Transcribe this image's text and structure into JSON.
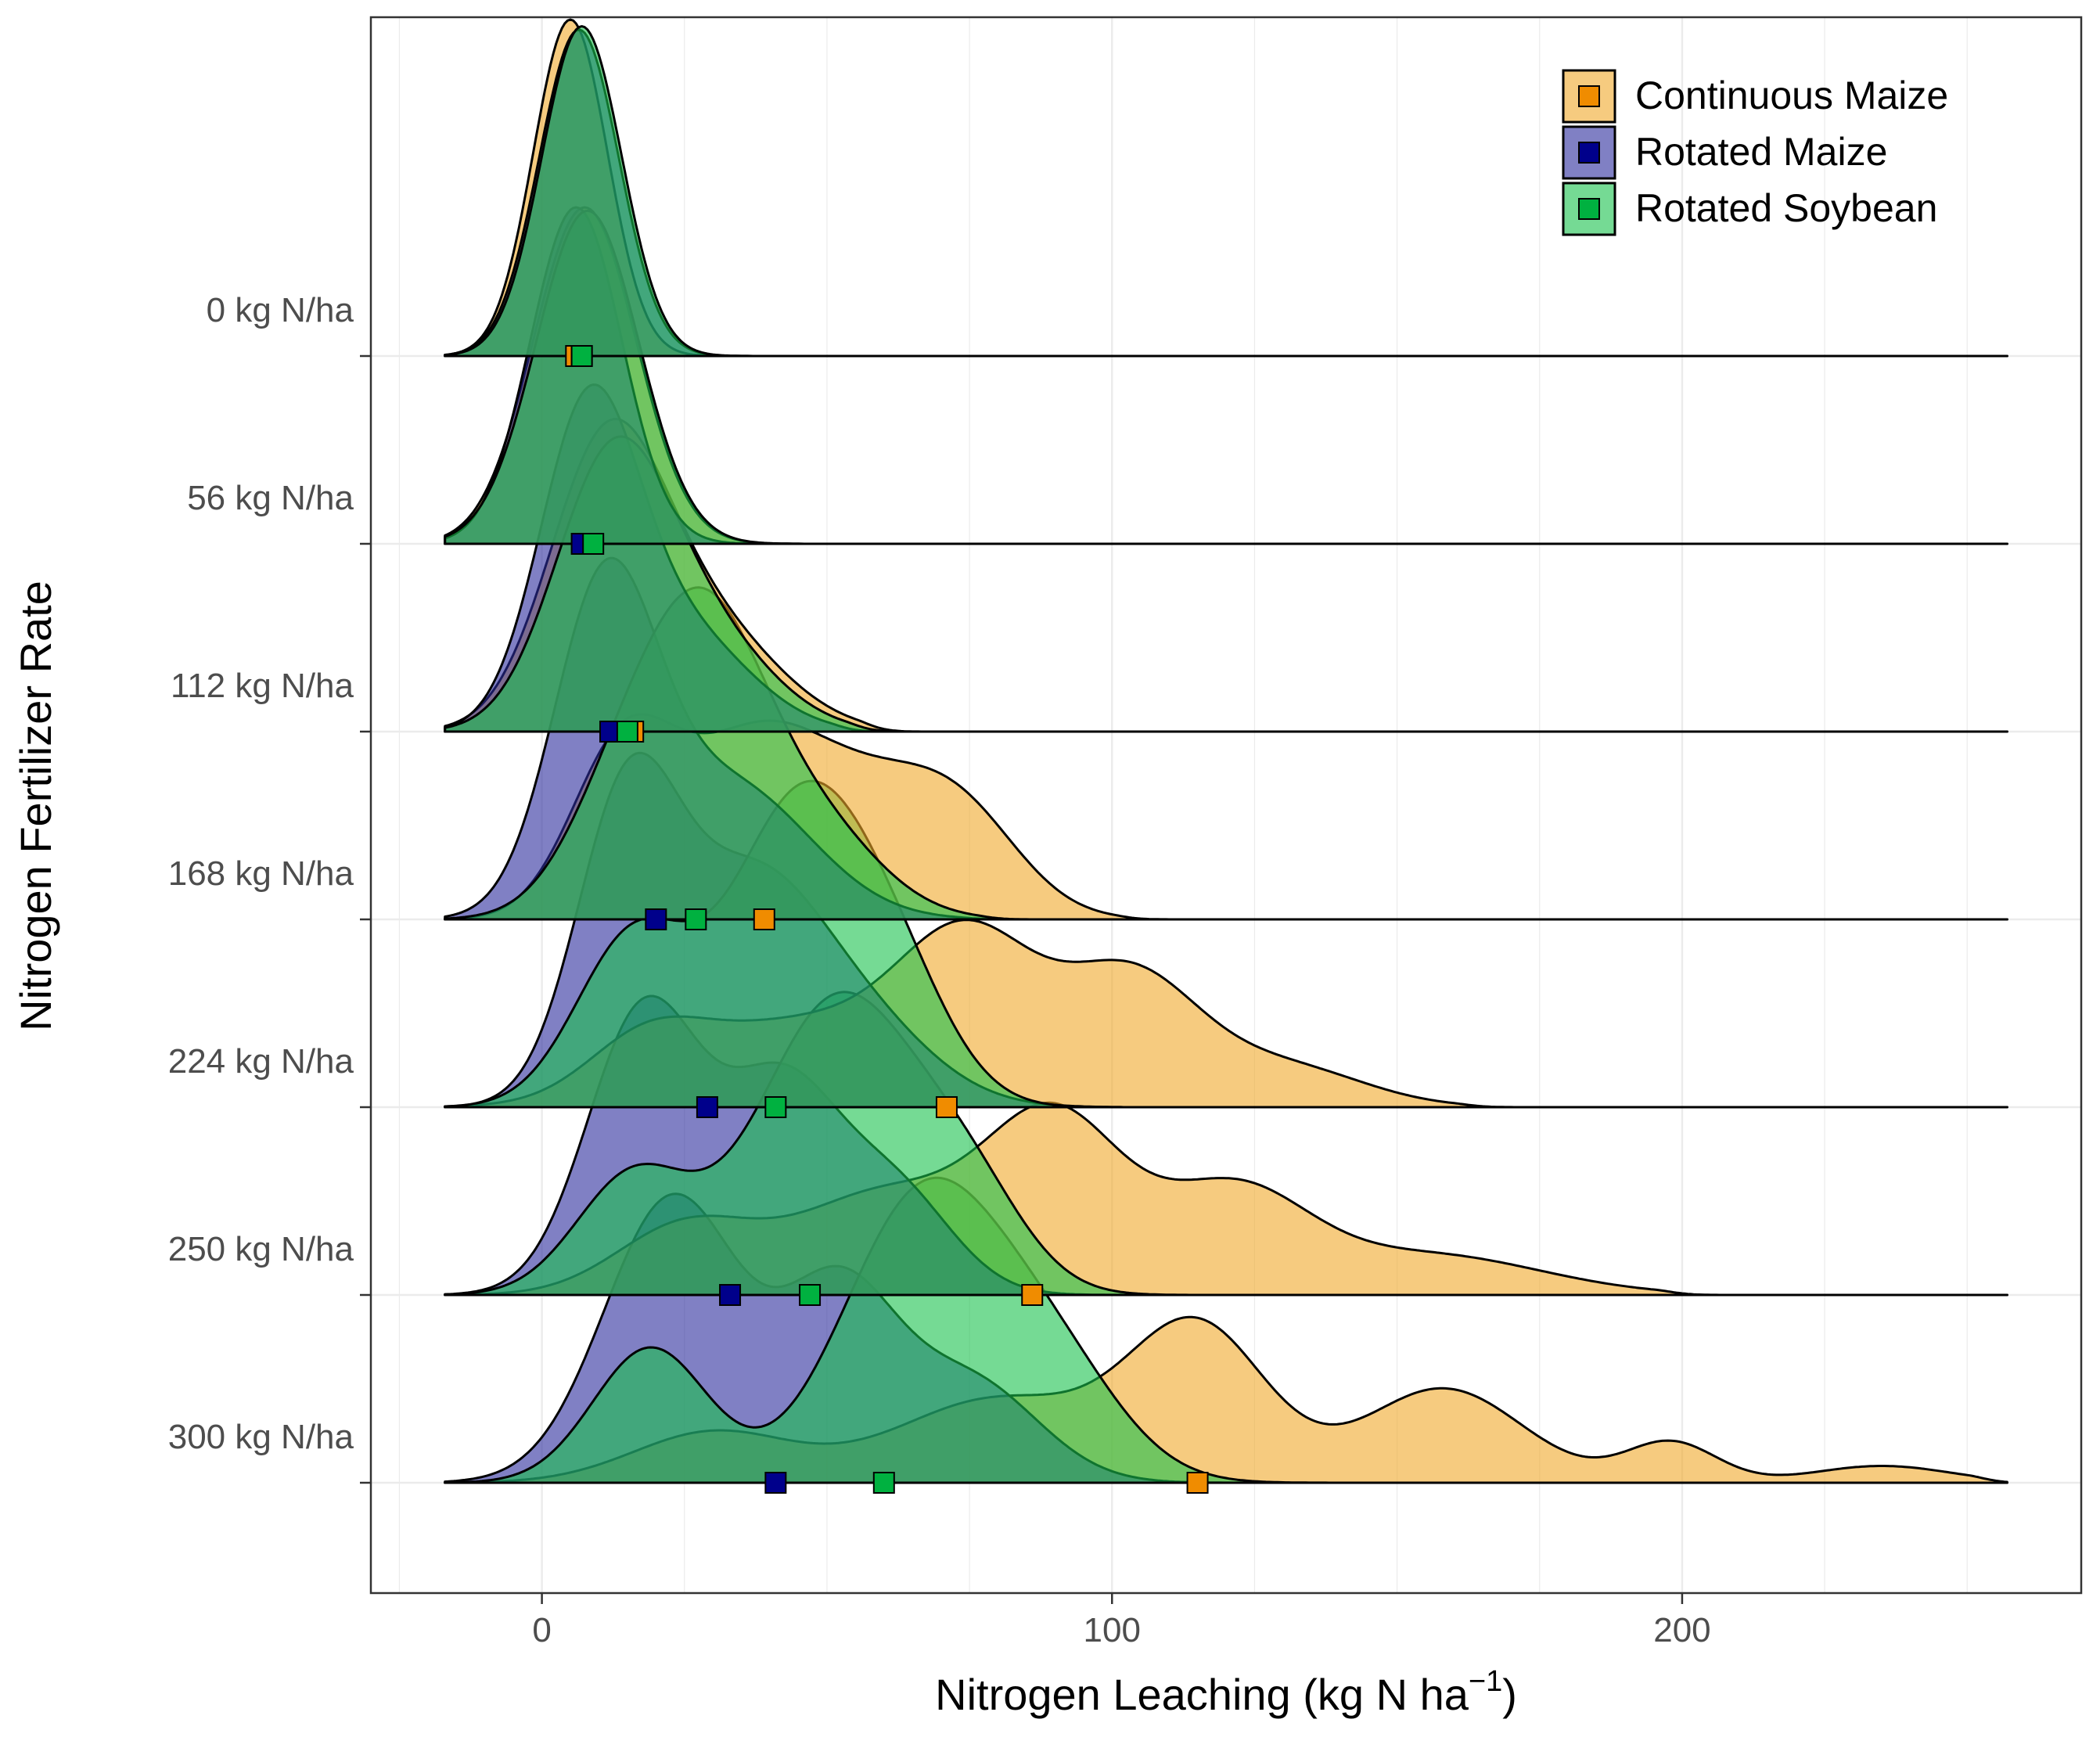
{
  "chart_data": {
    "type": "ridgeline",
    "title": "",
    "xlabel": "Nitrogen Leaching (kg N ha",
    "xlabel_superscript": "−1",
    "xlabel_suffix": ")",
    "ylabel": "Nitrogen Fertilizer Rate",
    "xlim": [
      -30,
      270
    ],
    "x_ticks": [
      0,
      100,
      200
    ],
    "x_tick_labels": [
      "0",
      "100",
      "200"
    ],
    "categories": [
      "0 kg N/ha",
      "56 kg N/ha",
      "112 kg N/ha",
      "168 kg N/ha",
      "224 kg N/ha",
      "250 kg N/ha",
      "300 kg N/ha"
    ],
    "grid": true,
    "legend_position": "top-right",
    "series": [
      {
        "name": "Continuous Maize",
        "fill": "#f0a92a",
        "marker": "#f08c00"
      },
      {
        "name": "Rotated Maize",
        "fill": "#2b2b9c",
        "marker": "#00008b"
      },
      {
        "name": "Rotated Soybean",
        "fill": "#19c24d",
        "marker": "#00b140"
      }
    ],
    "ridges": [
      {
        "category": "0 kg N/ha",
        "Continuous Maize": {
          "peaks": [
            [
              5,
              6.5,
              1.0
            ]
          ],
          "xmax": 35,
          "median": 6
        },
        "Rotated Maize": {
          "peaks": [
            [
              6.5,
              7,
              0.97
            ]
          ],
          "xmax": 37,
          "median": 7
        },
        "Rotated Soybean": {
          "peaks": [
            [
              7,
              7,
              0.98
            ]
          ],
          "xmax": 37,
          "median": 7
        }
      },
      {
        "category": "56 kg N/ha",
        "Continuous Maize": {
          "peaks": [
            [
              7.5,
              9,
              1.0
            ]
          ],
          "xmax": 42,
          "median": 8
        },
        "Rotated Maize": {
          "peaks": [
            [
              6,
              8,
              1.0
            ]
          ],
          "xmax": 40,
          "median": 7
        },
        "Rotated Soybean": {
          "peaks": [
            [
              8,
              9,
              0.99
            ]
          ],
          "xmax": 42,
          "median": 9
        }
      },
      {
        "category": "112 kg N/ha",
        "Continuous Maize": {
          "peaks": [
            [
              11,
              10,
              0.78
            ],
            [
              28,
              13,
              0.32
            ]
          ],
          "xmax": 55,
          "median": 16
        },
        "Rotated Maize": {
          "peaks": [
            [
              8,
              8.5,
              0.9
            ],
            [
              24,
              12,
              0.3
            ]
          ],
          "xmax": 50,
          "median": 12
        },
        "Rotated Soybean": {
          "peaks": [
            [
              12,
              10,
              0.75
            ],
            [
              28,
              12,
              0.28
            ]
          ],
          "xmax": 53,
          "median": 15
        }
      },
      {
        "category": "168 kg N/ha",
        "Continuous Maize": {
          "peaks": [
            [
              14,
              9,
              0.48
            ],
            [
              37,
              13,
              0.5
            ],
            [
              62,
              14,
              0.33
            ],
            [
              75,
              10,
              0.15
            ]
          ],
          "xmax": 100,
          "median": 39
        },
        "Rotated Maize": {
          "peaks": [
            [
              11,
              9,
              0.95
            ],
            [
              33,
              14,
              0.4
            ]
          ],
          "xmax": 73,
          "median": 20
        },
        "Rotated Soybean": {
          "peaks": [
            [
              15,
              10,
              0.4
            ],
            [
              29,
              10,
              0.72
            ],
            [
              46,
              12,
              0.3
            ]
          ],
          "xmax": 76,
          "median": 27
        }
      },
      {
        "category": "224 kg N/ha",
        "Continuous Maize": {
          "peaks": [
            [
              18,
              10,
              0.15
            ],
            [
              45,
              20,
              0.25
            ],
            [
              75,
              12,
              0.45
            ],
            [
              103,
              12,
              0.38
            ],
            [
              130,
              14,
              0.12
            ]
          ],
          "xmax": 160,
          "median": 71
        },
        "Rotated Maize": {
          "peaks": [
            [
              15,
              9,
              0.9
            ],
            [
              36,
              12,
              0.6
            ],
            [
              55,
              13,
              0.25
            ]
          ],
          "xmax": 95,
          "median": 29
        },
        "Rotated Soybean": {
          "peaks": [
            [
              16,
              10,
              0.5
            ],
            [
              45,
              12,
              0.88
            ],
            [
              62,
              10,
              0.3
            ]
          ],
          "xmax": 100,
          "median": 41
        }
      },
      {
        "category": "250 kg N/ha",
        "Continuous Maize": {
          "peaks": [
            [
              25,
              12,
              0.2
            ],
            [
              60,
              16,
              0.3
            ],
            [
              90,
              12,
              0.5
            ],
            [
              121,
              13,
              0.3
            ],
            [
              155,
              20,
              0.12
            ]
          ],
          "xmax": 195,
          "median": 86
        },
        "Rotated Maize": {
          "peaks": [
            [
              18,
              10,
              0.85
            ],
            [
              42,
              10,
              0.6
            ],
            [
              62,
              10,
              0.3
            ]
          ],
          "xmax": 105,
          "median": 33
        },
        "Rotated Soybean": {
          "peaks": [
            [
              16,
              10,
              0.35
            ],
            [
              52,
              14,
              0.88
            ],
            [
              75,
              10,
              0.25
            ]
          ],
          "xmax": 108,
          "median": 47
        }
      },
      {
        "category": "300 kg N/ha",
        "Continuous Maize": {
          "peaks": [
            [
              30,
              14,
              0.15
            ],
            [
              80,
              18,
              0.25
            ],
            [
              115,
              12,
              0.45
            ],
            [
              158,
              14,
              0.28
            ],
            [
              198,
              8,
              0.12
            ],
            [
              235,
              12,
              0.05
            ]
          ],
          "xmax": 250,
          "median": 115
        },
        "Rotated Maize": {
          "peaks": [
            [
              23,
              12,
              0.85
            ],
            [
              52,
              10,
              0.55
            ],
            [
              75,
              12,
              0.3
            ]
          ],
          "xmax": 130,
          "median": 41
        },
        "Rotated Soybean": {
          "peaks": [
            [
              19,
              10,
              0.4
            ],
            [
              67,
              14,
              0.85
            ],
            [
              90,
              12,
              0.3
            ]
          ],
          "xmax": 140,
          "median": 60
        }
      }
    ]
  }
}
